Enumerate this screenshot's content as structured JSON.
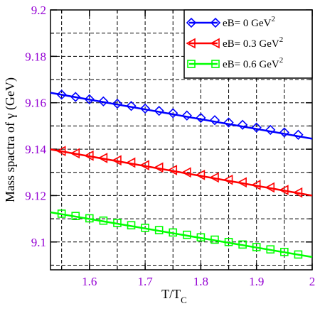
{
  "chart_data": {
    "type": "line",
    "xlabel": "T/T",
    "xlabel_sub": "C",
    "ylabel": "Mass spactra of γ (GeV)",
    "xlim": [
      1.53,
      2.0
    ],
    "ylim": [
      9.088,
      9.2
    ],
    "x_ticks": [
      1.6,
      1.7,
      1.8,
      1.9,
      2
    ],
    "x_tick_labels": [
      "1.6",
      "1.7",
      "1.8",
      "1.9",
      "2"
    ],
    "y_ticks": [
      9.1,
      9.12,
      9.14,
      9.16,
      9.18,
      9.2
    ],
    "y_tick_labels": [
      "9.1",
      "9.12",
      "9.14",
      "9.16",
      "9.18",
      "9.2"
    ],
    "grid": "dashed",
    "tick_color": "#9400d3",
    "legend_position": "top-right",
    "series": [
      {
        "name": "eB= 0 GeV",
        "name_sup": "2",
        "color": "#0000ff",
        "marker": "diamond",
        "line_x": [
          1.53,
          2.0
        ],
        "line_y": [
          9.1643,
          9.1445
        ],
        "x": [
          1.55,
          1.575,
          1.6,
          1.625,
          1.65,
          1.675,
          1.7,
          1.725,
          1.75,
          1.775,
          1.8,
          1.825,
          1.85,
          1.875,
          1.9,
          1.925,
          1.95,
          1.975
        ],
        "values": [
          9.1635,
          9.1625,
          9.1615,
          9.1606,
          9.1596,
          9.1586,
          9.1575,
          9.1565,
          9.1555,
          9.1545,
          9.1535,
          9.1525,
          9.1515,
          9.1505,
          9.1493,
          9.1483,
          9.1472,
          9.1462
        ]
      },
      {
        "name": "eB= 0.3 GeV",
        "name_sup": "2",
        "color": "#ff0000",
        "marker": "triangle-left",
        "line_x": [
          1.53,
          2.0
        ],
        "line_y": [
          9.1399,
          9.12
        ],
        "x": [
          1.55,
          1.575,
          1.6,
          1.625,
          1.65,
          1.675,
          1.7,
          1.725,
          1.75,
          1.775,
          1.8,
          1.825,
          1.85,
          1.875,
          1.9,
          1.925,
          1.95,
          1.975
        ],
        "values": [
          9.1392,
          9.1382,
          9.1372,
          9.1362,
          9.1352,
          9.1342,
          9.1331,
          9.1321,
          9.131,
          9.13,
          9.1289,
          9.1278,
          9.1268,
          9.1257,
          9.1246,
          9.1235,
          9.1224,
          9.1213
        ]
      },
      {
        "name": "eB= 0.6 GeV",
        "name_sup": "2",
        "color": "#00ff00",
        "marker": "square",
        "line_x": [
          1.53,
          2.0
        ],
        "line_y": [
          9.1128,
          9.0935
        ],
        "x": [
          1.55,
          1.575,
          1.6,
          1.625,
          1.65,
          1.675,
          1.7,
          1.725,
          1.75,
          1.775,
          1.8,
          1.825,
          1.85,
          1.875,
          1.9,
          1.925,
          1.95,
          1.975
        ],
        "values": [
          9.1122,
          9.1112,
          9.1102,
          9.1092,
          9.1082,
          9.1072,
          9.1061,
          9.1051,
          9.1041,
          9.1031,
          9.102,
          9.101,
          9.1,
          9.0989,
          9.0978,
          9.0968,
          9.0957,
          9.0946
        ]
      }
    ]
  }
}
